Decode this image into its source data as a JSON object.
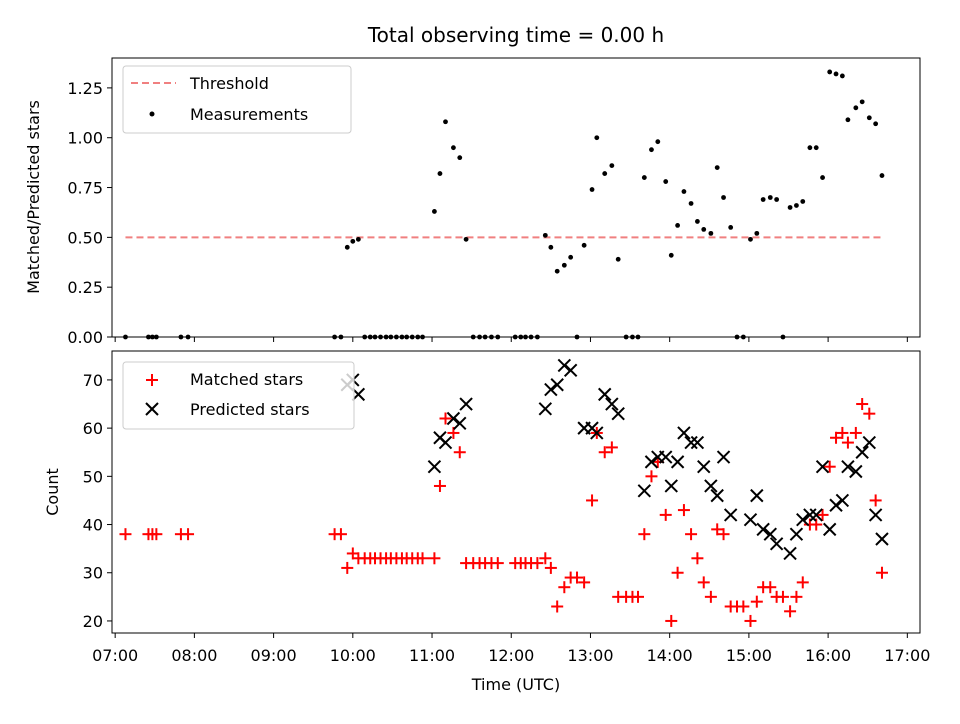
{
  "chart_data": [
    {
      "type": "scatter",
      "title": "Total observing time = 0.00 h",
      "xlabel": "",
      "ylabel": "Matched/Predicted stars",
      "xlim": [
        6.96,
        17.16
      ],
      "ylim": [
        0,
        1.4
      ],
      "yticks": [
        "0.00",
        "0.25",
        "0.50",
        "0.75",
        "1.00",
        "1.25"
      ],
      "ytick_values": [
        0,
        0.25,
        0.5,
        0.75,
        1.0,
        1.25
      ],
      "legend_position": "top-left",
      "series": [
        {
          "name": "Threshold",
          "kind": "dashed-line",
          "color": "#f08080",
          "x": [
            7.13,
            16.68
          ],
          "y": [
            0.5,
            0.5
          ]
        },
        {
          "name": "Measurements",
          "kind": "dots",
          "color": "#000000",
          "x": [
            7.13,
            7.42,
            7.47,
            7.52,
            7.83,
            7.92,
            9.77,
            9.85,
            9.93,
            10.0,
            10.07,
            10.15,
            10.22,
            10.28,
            10.35,
            10.42,
            10.48,
            10.55,
            10.62,
            10.68,
            10.75,
            10.82,
            10.88,
            11.03,
            11.1,
            11.17,
            11.27,
            11.35,
            11.43,
            11.52,
            11.6,
            11.67,
            11.75,
            11.83,
            12.05,
            12.12,
            12.18,
            12.25,
            12.33,
            12.43,
            12.5,
            12.58,
            12.67,
            12.75,
            12.83,
            12.92,
            13.02,
            13.08,
            13.18,
            13.27,
            13.35,
            13.45,
            13.53,
            13.6,
            13.68,
            13.77,
            13.85,
            13.95,
            14.02,
            14.1,
            14.18,
            14.27,
            14.35,
            14.43,
            14.52,
            14.6,
            14.68,
            14.77,
            14.85,
            14.93,
            15.02,
            15.1,
            15.18,
            15.27,
            15.35,
            15.43,
            15.52,
            15.6,
            15.68,
            15.77,
            15.85,
            15.93,
            16.02,
            16.1,
            16.18,
            16.25,
            16.35,
            16.43,
            16.52,
            16.6,
            16.68
          ],
          "y": [
            0,
            0,
            0,
            0,
            0,
            0,
            0,
            0,
            0.45,
            0.48,
            0.49,
            0,
            0,
            0,
            0,
            0,
            0,
            0,
            0,
            0,
            0,
            0,
            0,
            0.63,
            0.82,
            1.08,
            0.95,
            0.9,
            0.49,
            0,
            0,
            0,
            0,
            0,
            0,
            0,
            0,
            0,
            0,
            0.51,
            0.45,
            0.33,
            0.36,
            0.4,
            0,
            0.46,
            0.74,
            1.0,
            0.82,
            0.86,
            0.39,
            0,
            0,
            0,
            0.8,
            0.94,
            0.98,
            0.78,
            0.41,
            0.56,
            0.73,
            0.67,
            0.58,
            0.54,
            0.52,
            0.85,
            0.7,
            0.55,
            0,
            0,
            0.49,
            0.52,
            0.69,
            0.7,
            0.69,
            0,
            0.65,
            0.66,
            0.68,
            0.95,
            0.95,
            0.8,
            1.33,
            1.32,
            1.31,
            1.09,
            1.15,
            1.18,
            1.1,
            1.07,
            0.81
          ]
        }
      ]
    },
    {
      "type": "scatter",
      "title": "",
      "xlabel": "Time (UTC)",
      "ylabel": "Count",
      "xlim": [
        6.96,
        17.16
      ],
      "ylim": [
        17.5,
        76
      ],
      "xticks": [
        "07:00",
        "08:00",
        "09:00",
        "10:00",
        "11:00",
        "12:00",
        "13:00",
        "14:00",
        "15:00",
        "16:00",
        "17:00"
      ],
      "xtick_values": [
        7,
        8,
        9,
        10,
        11,
        12,
        13,
        14,
        15,
        16,
        17
      ],
      "yticks": [
        "20",
        "30",
        "40",
        "50",
        "60",
        "70"
      ],
      "ytick_values": [
        20,
        30,
        40,
        50,
        60,
        70
      ],
      "legend_position": "top-left",
      "series": [
        {
          "name": "Matched stars",
          "kind": "plus",
          "color": "#ff0000",
          "x": [
            7.13,
            7.42,
            7.47,
            7.52,
            7.83,
            7.92,
            9.77,
            9.85,
            9.93,
            10.0,
            10.07,
            10.15,
            10.22,
            10.28,
            10.35,
            10.42,
            10.48,
            10.55,
            10.62,
            10.68,
            10.75,
            10.82,
            10.88,
            11.03,
            11.1,
            11.17,
            11.27,
            11.35,
            11.43,
            11.52,
            11.6,
            11.67,
            11.75,
            11.83,
            12.05,
            12.12,
            12.18,
            12.25,
            12.33,
            12.43,
            12.5,
            12.58,
            12.67,
            12.75,
            12.83,
            12.92,
            13.02,
            13.08,
            13.18,
            13.27,
            13.35,
            13.45,
            13.53,
            13.6,
            13.68,
            13.77,
            13.85,
            13.95,
            14.02,
            14.1,
            14.18,
            14.27,
            14.35,
            14.43,
            14.52,
            14.6,
            14.68,
            14.77,
            14.85,
            14.93,
            15.02,
            15.1,
            15.18,
            15.27,
            15.35,
            15.43,
            15.52,
            15.6,
            15.68,
            15.77,
            15.85,
            15.93,
            16.02,
            16.1,
            16.18,
            16.25,
            16.35,
            16.43,
            16.52,
            16.6,
            16.68
          ],
          "y": [
            38,
            38,
            38,
            38,
            38,
            38,
            38,
            38,
            31,
            34,
            33,
            33,
            33,
            33,
            33,
            33,
            33,
            33,
            33,
            33,
            33,
            33,
            33,
            33,
            48,
            62,
            59,
            55,
            32,
            32,
            32,
            32,
            32,
            32,
            32,
            32,
            32,
            32,
            32,
            33,
            31,
            23,
            27,
            29,
            29,
            28,
            45,
            59,
            55,
            56,
            25,
            25,
            25,
            25,
            38,
            50,
            53,
            42,
            20,
            30,
            43,
            38,
            33,
            28,
            25,
            39,
            38,
            23,
            23,
            23,
            20,
            24,
            27,
            27,
            25,
            25,
            22,
            25,
            28,
            40,
            40,
            42,
            52,
            58,
            59,
            57,
            59,
            65,
            63,
            45,
            30
          ]
        },
        {
          "name": "Predicted stars",
          "kind": "x",
          "color": "#000000",
          "x": [
            9.93,
            10.0,
            10.07,
            11.03,
            11.1,
            11.17,
            11.27,
            11.35,
            11.43,
            12.43,
            12.5,
            12.58,
            12.67,
            12.75,
            12.92,
            13.02,
            13.08,
            13.18,
            13.27,
            13.35,
            13.68,
            13.77,
            13.85,
            13.95,
            14.02,
            14.1,
            14.18,
            14.27,
            14.35,
            14.43,
            14.52,
            14.6,
            14.68,
            14.77,
            15.02,
            15.1,
            15.18,
            15.27,
            15.35,
            15.52,
            15.6,
            15.68,
            15.77,
            15.85,
            15.93,
            16.02,
            16.1,
            16.18,
            16.25,
            16.35,
            16.43,
            16.52,
            16.6,
            16.68
          ],
          "y": [
            69,
            70,
            67,
            52,
            58,
            57,
            62,
            61,
            65,
            64,
            68,
            69,
            73,
            72,
            60,
            60,
            59,
            67,
            65,
            63,
            47,
            53,
            54,
            54,
            48,
            53,
            59,
            57,
            57,
            52,
            48,
            46,
            54,
            42,
            41,
            46,
            39,
            38,
            36,
            34,
            38,
            41,
            42,
            42,
            52,
            39,
            44,
            45,
            52,
            51,
            55,
            57,
            42,
            37
          ]
        }
      ]
    }
  ]
}
